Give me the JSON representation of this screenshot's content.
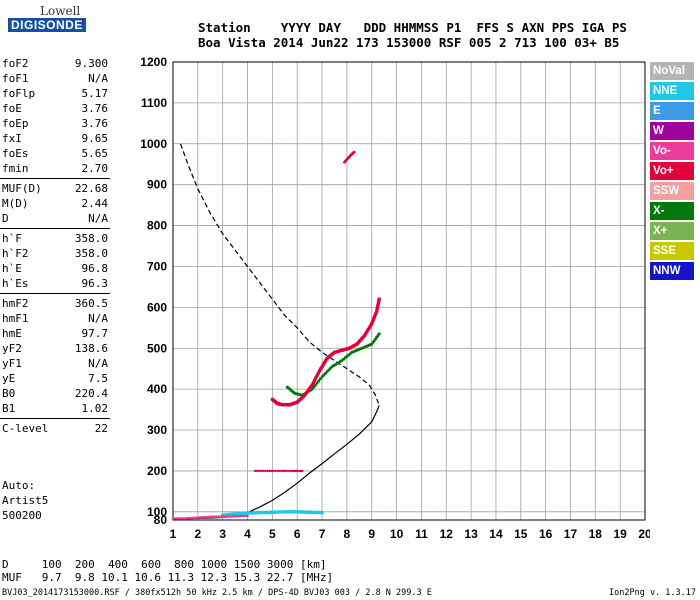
{
  "logo": {
    "line1": "Lowell",
    "line2": "DIGISONDE"
  },
  "header": {
    "line1": "Station    YYYY DAY   DDD HHMMSS P1  FFS S AXN PPS IGA PS",
    "line2": "Boa Vista 2014 Jun22 173 153000 RSF 005 2 713 100 03+ B5"
  },
  "params": [
    [
      {
        "label": "foF2",
        "value": "9.300"
      },
      {
        "label": "foF1",
        "value": "N/A"
      },
      {
        "label": "foFlp",
        "value": "5.17"
      },
      {
        "label": "foE",
        "value": "3.76"
      },
      {
        "label": "foEp",
        "value": "3.76"
      },
      {
        "label": "fxI",
        "value": "9.65"
      },
      {
        "label": "foEs",
        "value": "5.65"
      },
      {
        "label": "fmin",
        "value": "2.70"
      }
    ],
    [
      {
        "label": "MUF(D)",
        "value": "22.68"
      },
      {
        "label": "M(D)",
        "value": "2.44"
      },
      {
        "label": "D",
        "value": "N/A"
      }
    ],
    [
      {
        "label": "h`F",
        "value": "358.0"
      },
      {
        "label": "h`F2",
        "value": "358.0"
      },
      {
        "label": "h`E",
        "value": "96.8"
      },
      {
        "label": "h`Es",
        "value": "96.3"
      }
    ],
    [
      {
        "label": "hmF2",
        "value": "360.5"
      },
      {
        "label": "hmF1",
        "value": "N/A"
      },
      {
        "label": "hmE",
        "value": "97.7"
      },
      {
        "label": "yF2",
        "value": "138.6"
      },
      {
        "label": "yF1",
        "value": "N/A"
      },
      {
        "label": "yE",
        "value": "7.5"
      },
      {
        "label": "B0",
        "value": "220.4"
      },
      {
        "label": "B1",
        "value": "1.02"
      }
    ],
    [
      {
        "label": "C-level",
        "value": "22"
      }
    ]
  ],
  "auto": {
    "line1": "Auto:",
    "line2": "Artist5",
    "line3": "500200"
  },
  "legend": [
    {
      "label": "NoVal",
      "color": "#b4b4b4"
    },
    {
      "label": "NNE",
      "color": "#1ec8e6"
    },
    {
      "label": "E",
      "color": "#3c9be6"
    },
    {
      "label": "W",
      "color": "#a0009b"
    },
    {
      "label": "Vo-",
      "color": "#eb3c9b"
    },
    {
      "label": "Vo+",
      "color": "#e1003c"
    },
    {
      "label": "SSW",
      "color": "#f5a0a0"
    },
    {
      "label": "X-",
      "color": "#00780a"
    },
    {
      "label": "X+",
      "color": "#78b450"
    },
    {
      "label": "SSE",
      "color": "#c8c800"
    },
    {
      "label": "NNW",
      "color": "#1414c8"
    }
  ],
  "table": {
    "row1": "D     100  200  400  600  800 1000 1500 3000 [km]",
    "row2": "MUF   9.7  9.8 10.1 10.6 11.3 12.3 15.3 22.7 [MHz]"
  },
  "footer": "BVJ03_2014173153000.RSF / 380fx512h 50 kHz 2.5 km / DPS-4D BVJ03 003 / 2.8 N 299.3 E",
  "version": "Ion2Png v. 1.3.17",
  "chart_data": {
    "type": "scatter",
    "xlim": [
      1,
      20
    ],
    "ylim": [
      80,
      1200
    ],
    "xticks": [
      1,
      2,
      3,
      4,
      5,
      6,
      7,
      8,
      9,
      10,
      11,
      12,
      13,
      14,
      15,
      16,
      17,
      18,
      19,
      20
    ],
    "yticks": [
      100,
      200,
      300,
      400,
      500,
      600,
      700,
      800,
      900,
      1000,
      1100,
      1200
    ],
    "ytick_labels": [
      "100",
      "200",
      "300",
      "400",
      "500",
      "600",
      "700",
      "800",
      "900",
      "1000",
      "1100",
      "1200"
    ],
    "ytick_bottom_label": "80",
    "grid": true,
    "profile_dashed": {
      "name": "",
      "x": [
        1.3,
        1.6,
        2.0,
        2.5,
        3.0,
        3.5,
        4.0,
        4.5,
        5.0,
        5.5,
        6.0,
        6.5,
        7.0,
        7.5,
        8.0,
        8.5,
        8.9,
        9.15,
        9.3
      ],
      "y": [
        1000,
        950,
        890,
        830,
        780,
        740,
        700,
        660,
        620,
        580,
        550,
        515,
        490,
        470,
        450,
        430,
        410,
        385,
        360
      ]
    },
    "profile_solid": {
      "name": "",
      "x": [
        1.0,
        2.0,
        3.0,
        3.6,
        4.0,
        4.5,
        5.0,
        5.5,
        6.0,
        6.5,
        7.0,
        7.5,
        8.0,
        8.5,
        9.0,
        9.2,
        9.3
      ],
      "y": [
        83,
        84,
        86,
        90,
        98,
        112,
        128,
        148,
        170,
        195,
        218,
        242,
        265,
        290,
        320,
        345,
        360
      ]
    },
    "trace_o": {
      "name": "O",
      "color": "#e1003c",
      "x": [
        5.0,
        5.2,
        5.4,
        5.7,
        6.0,
        6.3,
        6.6,
        6.9,
        7.2,
        7.5,
        7.8,
        8.1,
        8.4,
        8.7,
        9.0,
        9.2,
        9.3
      ],
      "y": [
        375,
        365,
        362,
        362,
        368,
        385,
        410,
        445,
        475,
        490,
        495,
        500,
        510,
        530,
        560,
        590,
        620
      ]
    },
    "trace_x": {
      "name": "X",
      "color": "#00780a",
      "x": [
        5.6,
        5.9,
        6.2,
        6.6,
        7.0,
        7.4,
        7.8,
        8.2,
        8.6,
        9.0,
        9.3
      ],
      "y": [
        405,
        390,
        385,
        400,
        430,
        455,
        470,
        490,
        500,
        510,
        535
      ]
    },
    "es_layer": {
      "name": "Es",
      "color": "#1ec8e6",
      "x": [
        3.0,
        3.5,
        4.0,
        4.5,
        5.0,
        5.5,
        6.0,
        6.5,
        7.0
      ],
      "y": [
        92,
        95,
        97,
        98,
        99,
        100,
        100,
        99,
        98
      ]
    },
    "es_200": {
      "name": "Es2",
      "color": "#e1003c",
      "x": [
        4.3,
        4.8,
        5.3,
        5.8,
        6.2
      ],
      "y": [
        200,
        200,
        200,
        200,
        200
      ]
    },
    "bottom_trace": {
      "name": "E",
      "color": "#eb3c9b",
      "x": [
        1.0,
        1.5,
        2.0,
        2.5,
        3.0,
        3.5,
        4.0
      ],
      "y": [
        84,
        84,
        86,
        88,
        88,
        89,
        90
      ]
    },
    "upper_trace": {
      "name": "F2_2hop",
      "color": "#e1003c",
      "x": [
        7.9,
        8.05,
        8.2,
        8.3
      ],
      "y": [
        955,
        965,
        975,
        980
      ]
    }
  }
}
